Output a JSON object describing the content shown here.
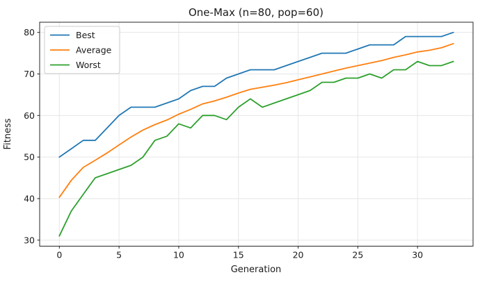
{
  "figure": {
    "background": "#ffffff"
  },
  "chart_data": {
    "type": "line",
    "title": "One-Max (n=80, pop=60)",
    "xlabel": "Generation",
    "ylabel": "Fitness",
    "x": [
      0,
      1,
      2,
      3,
      4,
      5,
      6,
      7,
      8,
      9,
      10,
      11,
      12,
      13,
      14,
      15,
      16,
      17,
      18,
      19,
      20,
      21,
      22,
      23,
      24,
      25,
      26,
      27,
      28,
      29,
      30,
      31,
      32,
      33
    ],
    "series": [
      {
        "name": "Best",
        "color": "#1f77b4",
        "values": [
          50,
          52,
          54,
          54,
          57,
          60,
          62,
          62,
          62,
          63,
          64,
          66,
          67,
          67,
          69,
          70,
          71,
          71,
          71,
          72,
          73,
          74,
          75,
          75,
          75,
          76,
          77,
          77,
          77,
          79,
          79,
          79,
          79,
          80
        ]
      },
      {
        "name": "Average",
        "color": "#ff7f0e",
        "values": [
          40.3,
          44.4,
          47.5,
          49.2,
          51.0,
          52.9,
          54.8,
          56.5,
          57.8,
          58.9,
          60.3,
          61.5,
          62.8,
          63.5,
          64.4,
          65.4,
          66.3,
          66.8,
          67.3,
          67.9,
          68.6,
          69.3,
          70.0,
          70.7,
          71.4,
          72.0,
          72.6,
          73.2,
          74.0,
          74.6,
          75.3,
          75.7,
          76.3,
          77.3
        ]
      },
      {
        "name": "Worst",
        "color": "#2ca02c",
        "values": [
          31,
          37,
          41,
          45,
          46,
          47,
          48,
          50,
          54,
          55,
          58,
          57,
          60,
          60,
          59,
          62,
          64,
          62,
          63,
          64,
          65,
          66,
          68,
          68,
          69,
          69,
          70,
          69,
          71,
          71,
          73,
          72,
          72,
          73
        ]
      }
    ],
    "xticks": [
      0,
      5,
      10,
      15,
      20,
      25,
      30
    ],
    "yticks": [
      30,
      40,
      50,
      60,
      70,
      80
    ],
    "xlim": [
      -1.65,
      34.65
    ],
    "ylim": [
      28.55,
      82.45
    ],
    "grid": true,
    "legend": {
      "position": "upper left",
      "entries": [
        "Best",
        "Average",
        "Worst"
      ]
    }
  },
  "colors": {
    "grid": "#e6e6e6",
    "spine": "#262626",
    "tick": "#262626",
    "text": "#1a1a1a",
    "legend_border": "#cccccc",
    "legend_bg": "#ffffff"
  }
}
